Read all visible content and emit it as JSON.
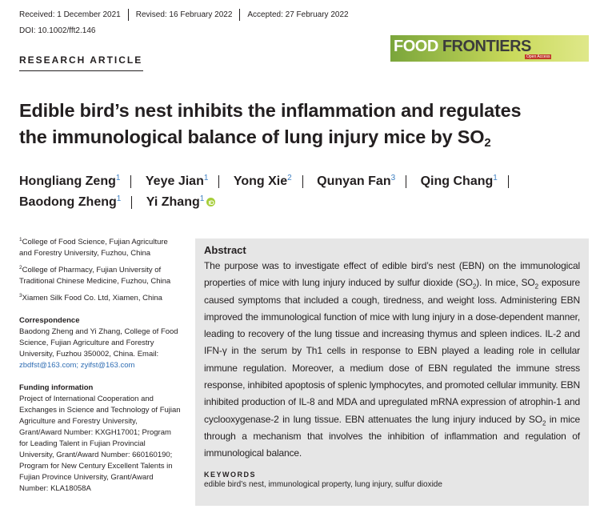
{
  "header": {
    "received": "Received: 1 December 2021",
    "revised": "Revised: 16 February 2022",
    "accepted": "Accepted: 27 February 2022",
    "doi": "DOI: 10.1002/fft2.146"
  },
  "journal": {
    "name_1": "FOOD",
    "name_2": "FRONTIERS",
    "access": "Open Access"
  },
  "article_type": "RESEARCH ARTICLE",
  "title": {
    "lines": [
      "Edible bird’s nest inhibits the inflammation and regulates",
      "the immunological balance of lung injury mice by SO"
    ],
    "subscript": "2"
  },
  "authors": [
    {
      "name": "Hongliang Zeng",
      "affiliation": "1"
    },
    {
      "name": "Yeye Jian",
      "affiliation": "1"
    },
    {
      "name": "Yong Xie",
      "affiliation": "2"
    },
    {
      "name": "Qunyan Fan",
      "affiliation": "3"
    },
    {
      "name": "Qing Chang",
      "affiliation": "1"
    },
    {
      "name": "Baodong Zheng",
      "affiliation": "1"
    },
    {
      "name": "Yi Zhang",
      "affiliation": "1"
    }
  ],
  "affiliations": [
    {
      "number": "1",
      "text": "College of Food Science, Fujian Agriculture and Forestry University, Fuzhou, China"
    },
    {
      "number": "2",
      "text": "College of Pharmacy, Fujian University of Traditional Chinese Medicine, Fuzhou, China"
    },
    {
      "number": "3",
      "text": "Xiamen Silk Food Co. Ltd, Xiamen, China"
    }
  ],
  "correspondence": {
    "heading": "Correspondence",
    "text": "Baodong Zheng and Yi Zhang, College of Food Science, Fujian Agriculture and Forestry University, Fuzhou 350002, China.",
    "email_label": "Email:",
    "emails": "zbdfst@163.com; zyifst@163.com"
  },
  "funding": {
    "heading": "Funding information",
    "text": "Project of International Cooperation and Exchanges in Science and Technology of Fujian Agriculture and Forestry University, Grant/Award Number: KXGH17001; Program for Leading Talent in Fujian Provincial University, Grant/Award Number: 660160190; Program for New Century Excellent Talents in Fujian Province University, Grant/Award Number: KLA18058A"
  },
  "abstract": {
    "heading": "Abstract",
    "segments": [
      {
        "text": "The purpose was to investigate effect of edible bird’s nest (EBN) on the immunological properties of mice with lung injury induced by sulfur dioxide (SO"
      },
      {
        "subscript": "2"
      },
      {
        "text": "). In mice, SO"
      },
      {
        "subscript": "2"
      },
      {
        "text": " exposure caused symptoms that included a cough, tiredness, and weight loss. Administering EBN improved the immunological function of mice with lung injury in a dose-dependent manner, leading to recovery of the lung tissue and increasing thymus and spleen indices. IL-2 and IFN-γ in the serum by Th1 cells in response to EBN played a leading role in cellular immune regulation. Moreover, a medium dose of EBN regulated the immune stress response, inhibited apoptosis of splenic lymphocytes, and promoted cellular immunity. EBN inhibited production of IL-8 and MDA and upregulated mRNA expression of atrophin-1 and cyclooxygenase-2 in lung tissue. EBN attenuates the lung injury induced by SO"
      },
      {
        "subscript": "2"
      },
      {
        "text": " in mice through a mechanism that involves the inhibition of inflammation and regulation of immunological balance."
      }
    ]
  },
  "keywords": {
    "heading": "KEYWORDS",
    "text": "edible bird’s nest, immunological property, lung injury, sulfur dioxide"
  }
}
